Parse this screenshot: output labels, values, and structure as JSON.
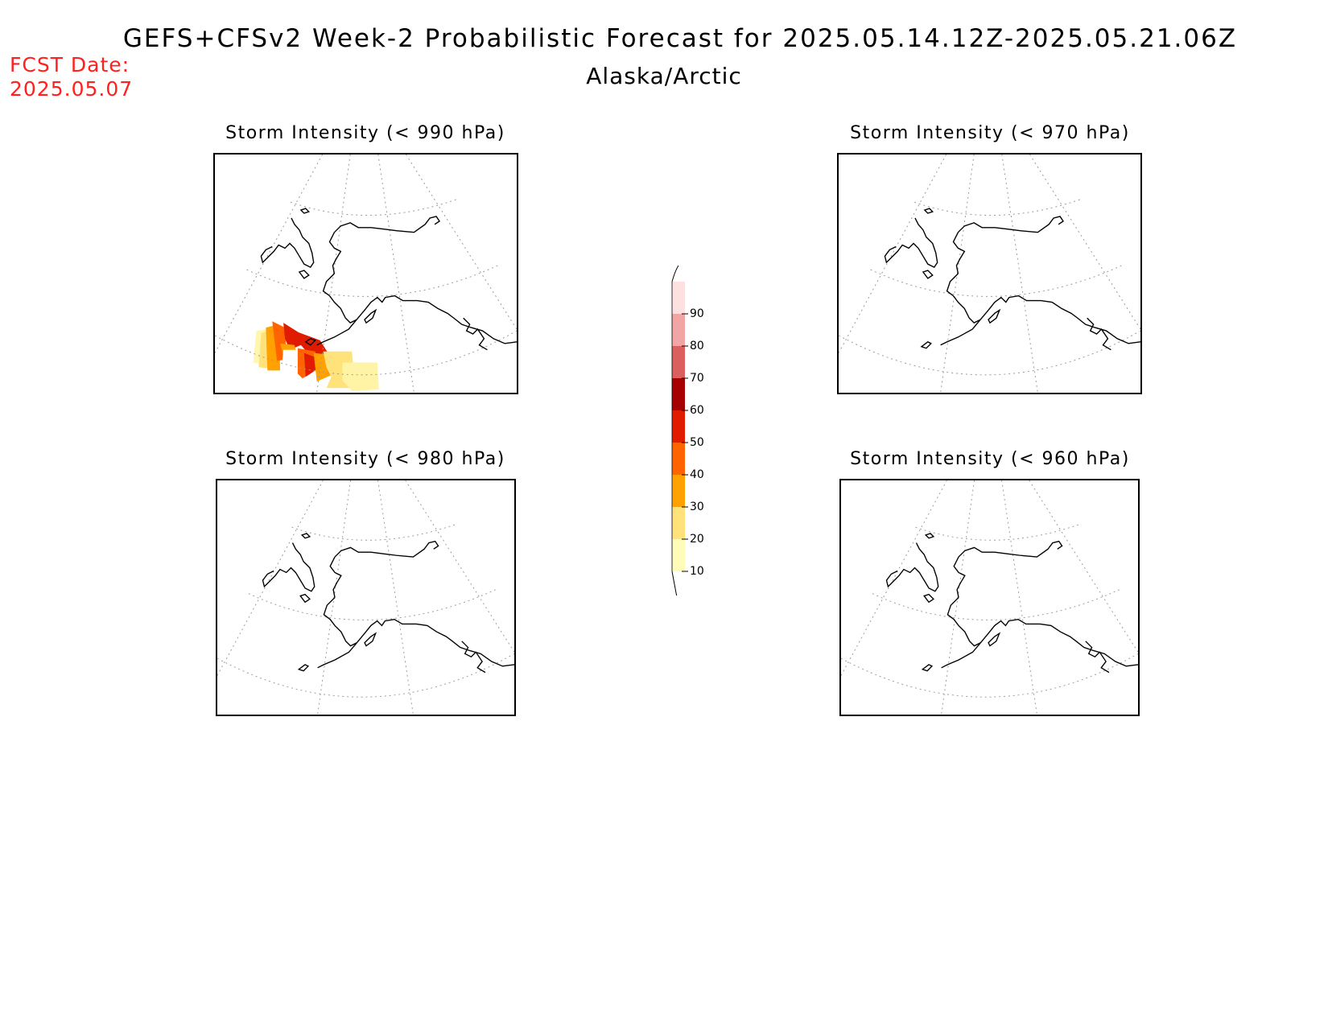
{
  "header": {
    "title": "GEFS+CFSv2 Week-2 Probabilistic Forecast for 2025.05.14.12Z-2025.05.21.06Z",
    "subtitle": "Alaska/Arctic",
    "fcst_label": "FCST Date:",
    "fcst_date": "2025.05.07"
  },
  "panels": [
    {
      "title": "Storm Intensity (< 990 hPa)",
      "has_shading": true
    },
    {
      "title": "Storm Intensity (< 970 hPa)",
      "has_shading": false
    },
    {
      "title": "Storm Intensity (< 980 hPa)",
      "has_shading": false
    },
    {
      "title": "Storm Intensity (< 960 hPa)",
      "has_shading": false
    }
  ],
  "colorbar": {
    "levels": [
      "10",
      "20",
      "30",
      "40",
      "50",
      "60",
      "70",
      "80",
      "90"
    ],
    "colors": [
      "#fffbb8",
      "#ffe27a",
      "#ffa100",
      "#ff6400",
      "#e01b00",
      "#a60000",
      "#dc5f5f",
      "#f2a5a5",
      "#fde1e1"
    ]
  }
}
